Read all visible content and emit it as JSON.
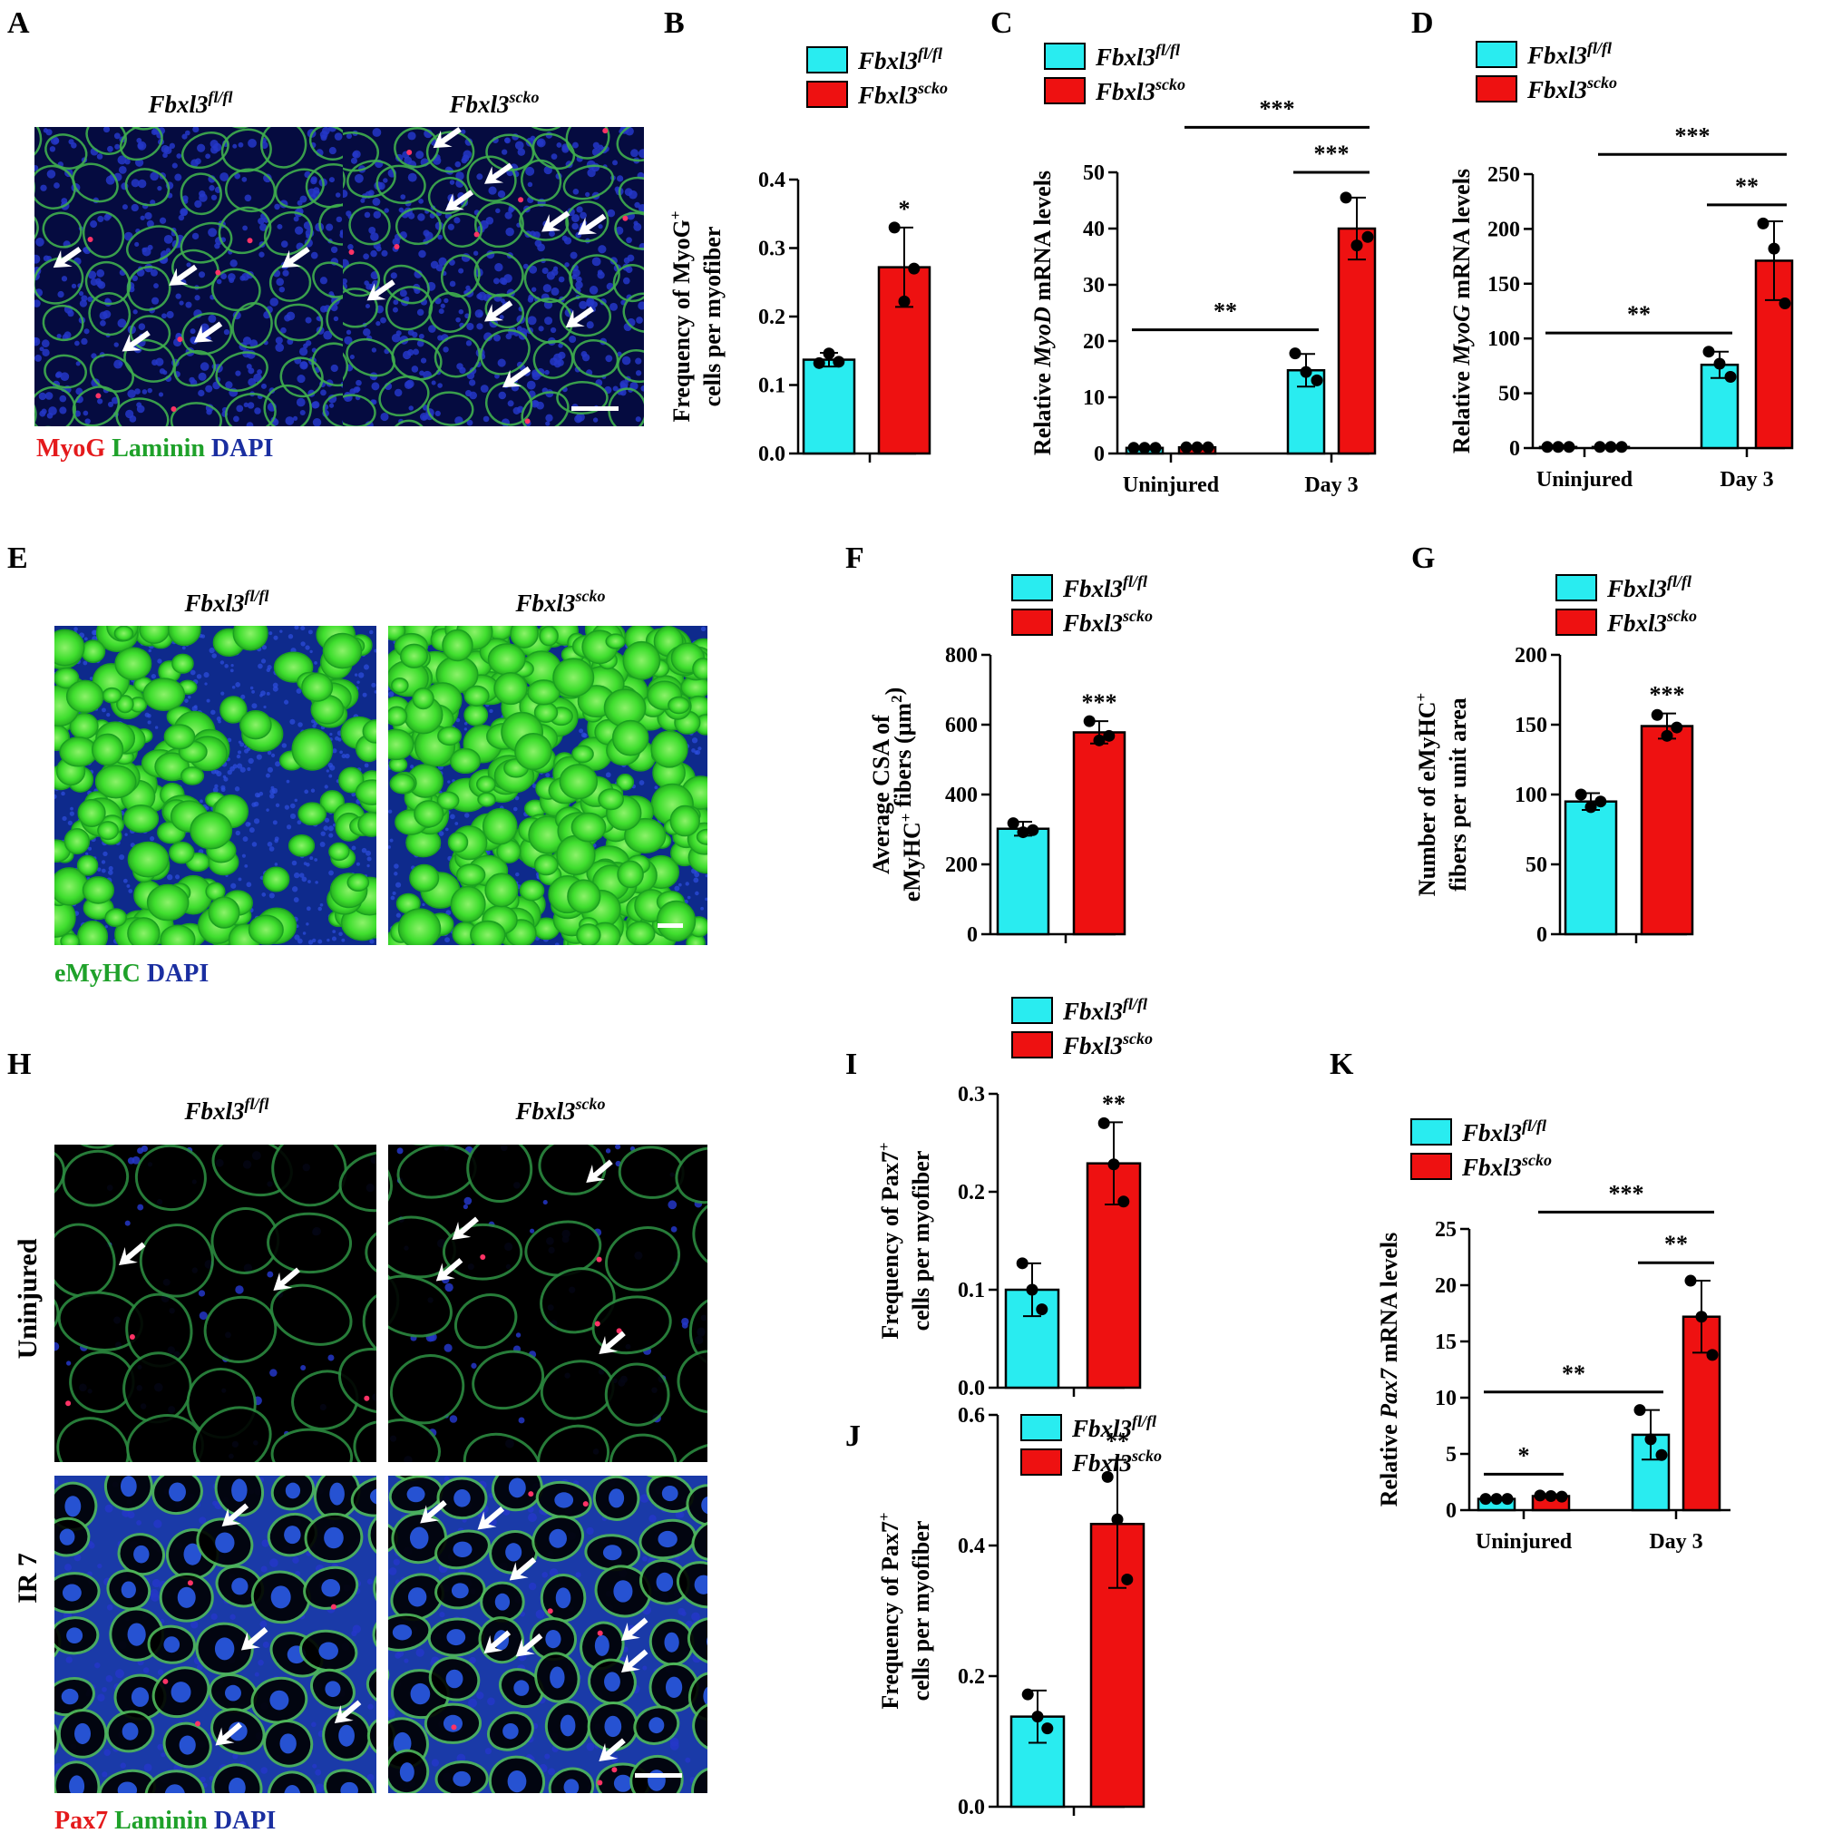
{
  "colors": {
    "fl": "#29ECF0",
    "scko": "#EE1111",
    "stain_red": "#E41A1C",
    "stain_green": "#1FA12A",
    "stain_blue": "#1A2EA0"
  },
  "legend": {
    "fl_base": "Fbxl3",
    "fl_sup": "fl/fl",
    "scko_base": "Fbxl3",
    "scko_sup": "scko"
  },
  "panels": {
    "A": {
      "letter": "A",
      "titles": [
        {
          "base": "Fbxl3",
          "sup": "fl/fl"
        },
        {
          "base": "Fbxl3",
          "sup": "scko"
        }
      ],
      "stain": [
        {
          "text": "MyoG",
          "color": "stain_red"
        },
        {
          "text": "Laminin",
          "color": "stain_green"
        },
        {
          "text": "DAPI",
          "color": "stain_blue"
        }
      ]
    },
    "E": {
      "letter": "E",
      "titles": [
        {
          "base": "Fbxl3",
          "sup": "fl/fl"
        },
        {
          "base": "Fbxl3",
          "sup": "scko"
        }
      ],
      "stain": [
        {
          "text": "eMyHC",
          "color": "stain_green"
        },
        {
          "text": "DAPI",
          "color": "stain_blue"
        }
      ]
    },
    "H": {
      "letter": "H",
      "titles": [
        {
          "base": "Fbxl3",
          "sup": "fl/fl"
        },
        {
          "base": "Fbxl3",
          "sup": "scko"
        }
      ],
      "rows": [
        "Uninjured",
        "IR 7"
      ],
      "stain": [
        {
          "text": "Pax7",
          "color": "stain_red"
        },
        {
          "text": "Laminin",
          "color": "stain_green"
        },
        {
          "text": "DAPI",
          "color": "stain_blue"
        }
      ]
    }
  },
  "chart_data": [
    {
      "id": "B",
      "type": "bar",
      "letter": "B",
      "ylabel_lines": [
        [
          {
            "t": "Frequency of MyoG"
          },
          {
            "t": "+",
            "sup": true
          }
        ],
        [
          {
            "t": "cells per myofiber"
          }
        ]
      ],
      "ylim": [
        0,
        0.4
      ],
      "yticks": [
        "0.0",
        "0.1",
        "0.2",
        "0.3",
        "0.4"
      ],
      "groups": [
        {
          "label": "",
          "bars": [
            {
              "series": "fl",
              "value": 0.137,
              "err": 0.01,
              "points": [
                0.132,
                0.146,
                0.134
              ]
            },
            {
              "series": "scko",
              "value": 0.272,
              "err": 0.058,
              "points": [
                0.33,
                0.222,
                0.27
              ]
            }
          ]
        }
      ],
      "significance": [
        {
          "text": "*",
          "over": "bar",
          "group": 0,
          "bar": 1
        }
      ]
    },
    {
      "id": "C",
      "type": "bar",
      "letter": "C",
      "ylabel_lines": [
        [
          {
            "t": "Relative "
          },
          {
            "t": "MyoD",
            "it": true
          },
          {
            "t": " mRNA levels"
          }
        ]
      ],
      "ylim": [
        0,
        50
      ],
      "yticks": [
        "0",
        "10",
        "20",
        "30",
        "40",
        "50"
      ],
      "groups": [
        {
          "label": "Uninjured",
          "bars": [
            {
              "series": "fl",
              "value": 1.0,
              "err": 0.1,
              "points": [
                1.0,
                1.0,
                1.0
              ]
            },
            {
              "series": "scko",
              "value": 1.1,
              "err": 0.1,
              "points": [
                1.1,
                1.1,
                1.1
              ]
            }
          ]
        },
        {
          "label": "Day 3",
          "bars": [
            {
              "series": "fl",
              "value": 14.8,
              "err": 2.9,
              "points": [
                17.8,
                14.5,
                13.0
              ]
            },
            {
              "series": "scko",
              "value": 40.0,
              "err": 5.5,
              "points": [
                45.5,
                37.0,
                38.5
              ]
            }
          ]
        }
      ],
      "significance": [
        {
          "text": "**",
          "from": [
            0,
            0
          ],
          "to": [
            1,
            0
          ],
          "value": 22
        },
        {
          "text": "***",
          "from": [
            1,
            0
          ],
          "to": [
            1,
            1
          ],
          "value": 50
        },
        {
          "text": "***",
          "from": [
            0,
            1
          ],
          "to": [
            1,
            1
          ],
          "value": 58
        }
      ]
    },
    {
      "id": "D",
      "type": "bar",
      "letter": "D",
      "ylabel_lines": [
        [
          {
            "t": "Relative "
          },
          {
            "t": "MyoG",
            "it": true
          },
          {
            "t": " mRNA levels"
          }
        ]
      ],
      "ylim": [
        0,
        250
      ],
      "yticks": [
        "0",
        "50",
        "100",
        "150",
        "200",
        "250"
      ],
      "groups": [
        {
          "label": "Uninjured",
          "bars": [
            {
              "series": "fl",
              "value": 1.0,
              "err": 0.5,
              "points": [
                1.0,
                1.0,
                1.0
              ]
            },
            {
              "series": "scko",
              "value": 1.0,
              "err": 0.5,
              "points": [
                1.0,
                1.0,
                1.0
              ]
            }
          ]
        },
        {
          "label": "Day 3",
          "bars": [
            {
              "series": "fl",
              "value": 76,
              "err": 12,
              "points": [
                88,
                77,
                65
              ]
            },
            {
              "series": "scko",
              "value": 171,
              "err": 36,
              "points": [
                205,
                182,
                132
              ]
            }
          ]
        }
      ],
      "significance": [
        {
          "text": "**",
          "from": [
            0,
            0
          ],
          "to": [
            1,
            0
          ],
          "value": 105
        },
        {
          "text": "**",
          "from": [
            1,
            0
          ],
          "to": [
            1,
            1
          ],
          "value": 222
        },
        {
          "text": "***",
          "from": [
            0,
            1
          ],
          "to": [
            1,
            1
          ],
          "value": 268
        }
      ]
    },
    {
      "id": "F",
      "type": "bar",
      "letter": "F",
      "ylabel_lines": [
        [
          {
            "t": "Average CSA of"
          }
        ],
        [
          {
            "t": "eMyHC"
          },
          {
            "t": "+",
            "sup": true
          },
          {
            "t": " fibers (μm"
          },
          {
            "t": "2",
            "sup": true
          },
          {
            "t": ")"
          }
        ]
      ],
      "ylim": [
        0,
        800
      ],
      "yticks": [
        "0",
        "200",
        "400",
        "600",
        "800"
      ],
      "groups": [
        {
          "label": "",
          "bars": [
            {
              "series": "fl",
              "value": 302,
              "err": 20,
              "points": [
                318,
                292,
                298
              ]
            },
            {
              "series": "scko",
              "value": 578,
              "err": 32,
              "points": [
                610,
                555,
                568
              ]
            }
          ]
        }
      ],
      "significance": [
        {
          "text": "***",
          "over": "bar",
          "group": 0,
          "bar": 1
        }
      ]
    },
    {
      "id": "G",
      "type": "bar",
      "letter": "G",
      "ylabel_lines": [
        [
          {
            "t": "Number of eMyHC"
          },
          {
            "t": "+",
            "sup": true
          }
        ],
        [
          {
            "t": "fibers per unit area"
          }
        ]
      ],
      "ylim": [
        0,
        200
      ],
      "yticks": [
        "0",
        "50",
        "100",
        "150",
        "200"
      ],
      "groups": [
        {
          "label": "",
          "bars": [
            {
              "series": "fl",
              "value": 95,
              "err": 6,
              "points": [
                100,
                91,
                95
              ]
            },
            {
              "series": "scko",
              "value": 149,
              "err": 9,
              "points": [
                157,
                142,
                148
              ]
            }
          ]
        }
      ],
      "significance": [
        {
          "text": "***",
          "over": "bar",
          "group": 0,
          "bar": 1
        }
      ]
    },
    {
      "id": "I",
      "type": "bar",
      "letter": "I",
      "ylabel_lines": [
        [
          {
            "t": "Frequency of Pax7"
          },
          {
            "t": "+",
            "sup": true
          }
        ],
        [
          {
            "t": "cells per myofiber"
          }
        ]
      ],
      "ylim": [
        0,
        0.3
      ],
      "yticks": [
        "0.0",
        "0.1",
        "0.2",
        "0.3"
      ],
      "groups": [
        {
          "label": "",
          "bars": [
            {
              "series": "fl",
              "value": 0.1,
              "err": 0.027,
              "points": [
                0.127,
                0.1,
                0.08
              ]
            },
            {
              "series": "scko",
              "value": 0.229,
              "err": 0.042,
              "points": [
                0.27,
                0.228,
                0.19
              ]
            }
          ]
        }
      ],
      "significance": [
        {
          "text": "**",
          "over": "bar",
          "group": 0,
          "bar": 1
        }
      ]
    },
    {
      "id": "J",
      "type": "bar",
      "letter": "J",
      "ylabel_lines": [
        [
          {
            "t": "Frequency of Pax7"
          },
          {
            "t": "+",
            "sup": true
          }
        ],
        [
          {
            "t": "cells per myofiber"
          }
        ]
      ],
      "ylim": [
        0,
        0.6
      ],
      "yticks": [
        "0.0",
        "0.2",
        "0.4",
        "0.6"
      ],
      "groups": [
        {
          "label": "",
          "bars": [
            {
              "series": "fl",
              "value": 0.138,
              "err": 0.04,
              "points": [
                0.172,
                0.138,
                0.12
              ]
            },
            {
              "series": "scko",
              "value": 0.433,
              "err": 0.098,
              "points": [
                0.505,
                0.44,
                0.348
              ]
            }
          ]
        }
      ],
      "significance": [
        {
          "text": "**",
          "over": "bar",
          "group": 0,
          "bar": 1
        }
      ]
    },
    {
      "id": "K",
      "type": "bar",
      "letter": "K",
      "ylabel_lines": [
        [
          {
            "t": "Relative "
          },
          {
            "t": "Pax7",
            "it": true
          },
          {
            "t": " mRNA levels"
          }
        ]
      ],
      "ylim": [
        0,
        25
      ],
      "yticks": [
        "0",
        "5",
        "10",
        "15",
        "20",
        "25"
      ],
      "groups": [
        {
          "label": "Uninjured",
          "bars": [
            {
              "series": "fl",
              "value": 1.0,
              "err": 0.1,
              "points": [
                1.0,
                1.0,
                1.0
              ]
            },
            {
              "series": "scko",
              "value": 1.25,
              "err": 0.15,
              "points": [
                1.3,
                1.25,
                1.2
              ]
            }
          ]
        },
        {
          "label": "Day 3",
          "bars": [
            {
              "series": "fl",
              "value": 6.7,
              "err": 2.2,
              "points": [
                8.9,
                6.3,
                4.9
              ]
            },
            {
              "series": "scko",
              "value": 17.2,
              "err": 3.2,
              "points": [
                20.4,
                17.2,
                13.8
              ]
            }
          ]
        }
      ],
      "significance": [
        {
          "text": "*",
          "from": [
            0,
            0
          ],
          "to": [
            0,
            1
          ],
          "value": 3.2
        },
        {
          "text": "**",
          "from": [
            0,
            0
          ],
          "to": [
            1,
            0
          ],
          "value": 10.5
        },
        {
          "text": "**",
          "from": [
            1,
            0
          ],
          "to": [
            1,
            1
          ],
          "value": 22.0
        },
        {
          "text": "***",
          "from": [
            0,
            1
          ],
          "to": [
            1,
            1
          ],
          "value": 26.5
        }
      ]
    }
  ]
}
